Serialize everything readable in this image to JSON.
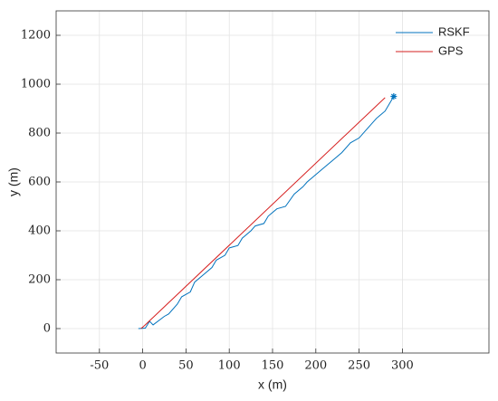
{
  "chart_data": {
    "type": "line",
    "x_label": "x (m)",
    "y_label": "y (m)",
    "xlim": [
      -100,
      400
    ],
    "ylim": [
      -100,
      1300
    ],
    "xticks": [
      -50,
      0,
      50,
      100,
      150,
      200,
      250,
      300
    ],
    "yticks": [
      0,
      200,
      400,
      600,
      800,
      1000,
      1200
    ],
    "grid": true,
    "legend": "upper right",
    "series": [
      {
        "name": "RSKF",
        "color": "#0072bd",
        "x": [
          -5,
          3,
          8,
          12,
          25,
          30,
          40,
          45,
          55,
          60,
          70,
          80,
          85,
          95,
          100,
          110,
          115,
          125,
          130,
          140,
          145,
          155,
          165,
          175,
          185,
          190,
          200,
          210,
          220,
          230,
          240,
          250,
          260,
          270,
          280,
          285,
          290
        ],
        "values": [
          0,
          2,
          30,
          15,
          50,
          60,
          100,
          130,
          150,
          190,
          220,
          250,
          280,
          300,
          330,
          340,
          370,
          400,
          420,
          430,
          460,
          490,
          500,
          550,
          580,
          600,
          630,
          660,
          690,
          720,
          760,
          780,
          820,
          860,
          890,
          920,
          950
        ]
      },
      {
        "name": "GPS",
        "color": "#d62020",
        "x": [
          -2,
          2,
          280
        ],
        "values": [
          0,
          12,
          945
        ]
      }
    ]
  }
}
